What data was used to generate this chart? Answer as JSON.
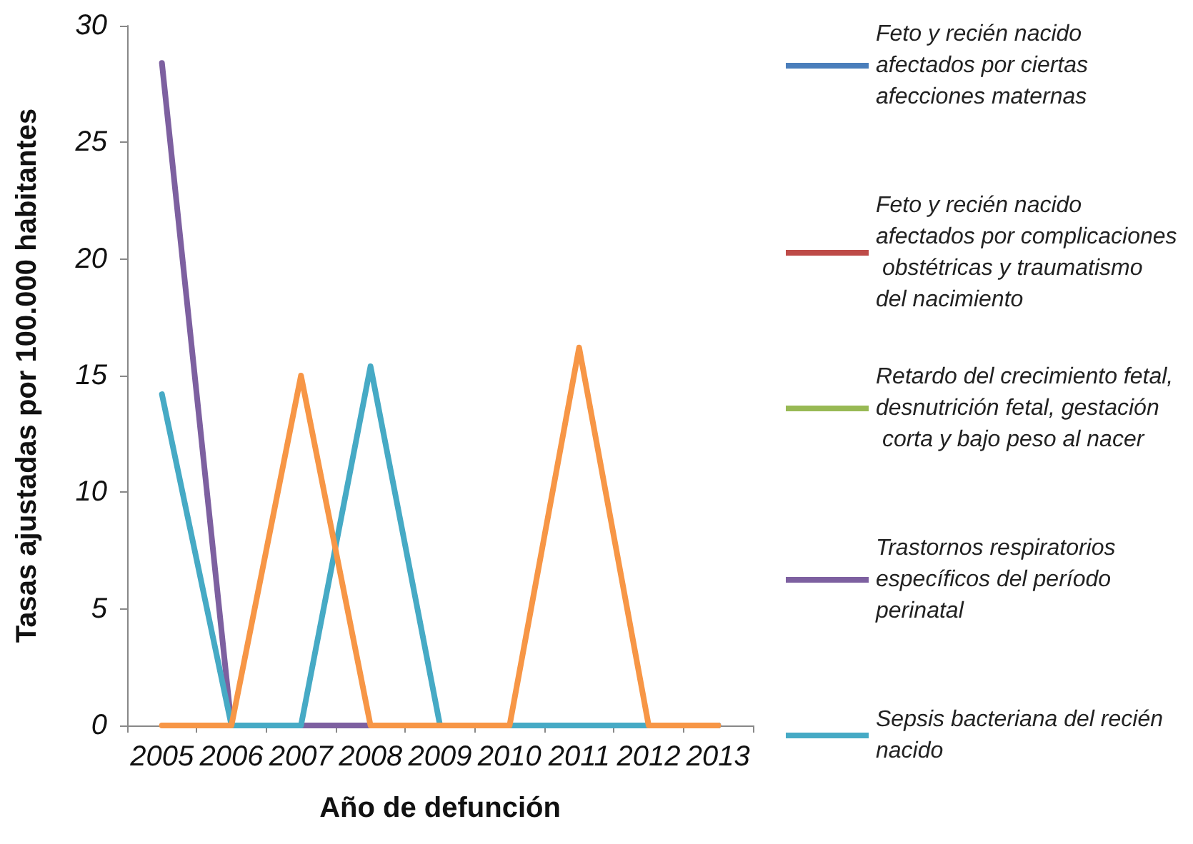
{
  "chart_data": {
    "type": "line",
    "xlabel": "Año de defunción",
    "ylabel": "Tasas ajustadas por 100.000 habitantes",
    "categories": [
      "2005",
      "2006",
      "2007",
      "2008",
      "2009",
      "2010",
      "2011",
      "2012",
      "2013"
    ],
    "series": [
      {
        "name": "Feto y recién nacido afectados por ciertas afecciones maternas",
        "color": "#4a7ebb",
        "values": [
          null,
          null,
          null,
          null,
          null,
          null,
          null,
          null,
          null
        ]
      },
      {
        "name": "Feto y recién nacido afectados por complicaciones obstétricas y traumatismo del nacimiento",
        "color": "#be4b48",
        "values": [
          null,
          null,
          null,
          null,
          null,
          null,
          null,
          null,
          null
        ]
      },
      {
        "name": "Retardo del crecimiento fetal, desnutrición fetal, gestación corta y bajo peso al nacer",
        "color": "#98b954",
        "values": [
          null,
          null,
          null,
          null,
          null,
          null,
          null,
          null,
          null
        ]
      },
      {
        "name": "Trastornos respiratorios específicos del período perinatal",
        "color": "#7d60a0",
        "values": [
          28.4,
          0,
          0,
          0,
          0,
          0,
          0,
          0,
          0
        ]
      },
      {
        "name": "Sepsis bacteriana del recién nacido",
        "color": "#46aac5",
        "values": [
          14.2,
          0,
          0,
          15.4,
          0,
          0,
          0,
          0,
          0
        ]
      },
      {
        "color": "#f79646",
        "values": [
          0,
          0,
          15,
          0,
          0,
          0,
          16.2,
          0,
          0
        ]
      }
    ],
    "ylim": [
      0,
      30
    ],
    "yticks": [
      0,
      5,
      10,
      15,
      20,
      25,
      30
    ],
    "grid": false,
    "legend": "right",
    "marker": "none",
    "line_style": "solid"
  }
}
